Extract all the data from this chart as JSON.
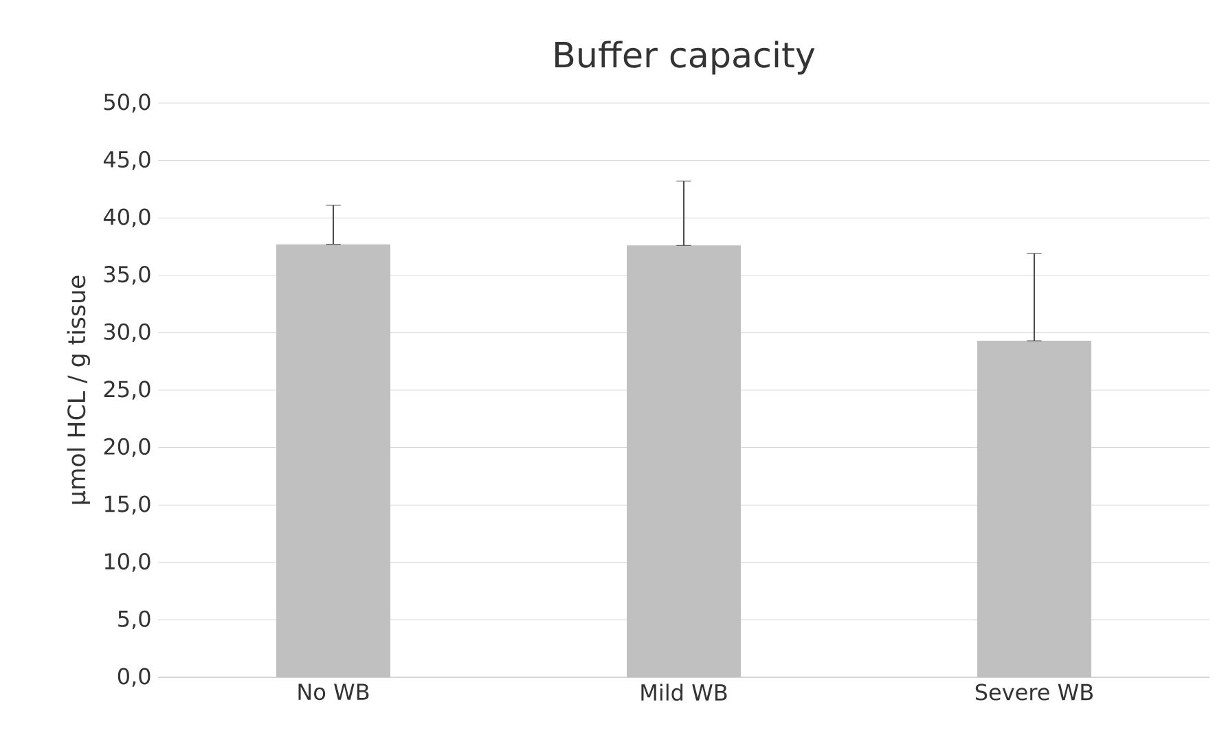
{
  "chart_data": {
    "type": "bar",
    "title": "Buffer capacity",
    "ylabel": "µmol HCL / g tissue",
    "categories": [
      "No WB",
      "Mild WB",
      "Severe WB"
    ],
    "values": [
      37.7,
      37.6,
      29.3
    ],
    "errors": [
      [
        37.7,
        41.1
      ],
      [
        37.6,
        43.2
      ],
      [
        29.3,
        36.9
      ]
    ],
    "color": "#c0c0c0",
    "ylim": [
      0,
      50
    ],
    "yticks": [
      {
        "value": 0,
        "label": "0,0"
      },
      {
        "value": 5,
        "label": "5,0"
      },
      {
        "value": 10,
        "label": "10,0"
      },
      {
        "value": 15,
        "label": "15,0"
      },
      {
        "value": 20,
        "label": "20,0"
      },
      {
        "value": 25,
        "label": "25,0"
      },
      {
        "value": 30,
        "label": "30,0"
      },
      {
        "value": 35,
        "label": "35,0"
      },
      {
        "value": 40,
        "label": "40,0"
      },
      {
        "value": 45,
        "label": "45,0"
      },
      {
        "value": 50,
        "label": "50,0"
      }
    ],
    "grid": "y"
  }
}
